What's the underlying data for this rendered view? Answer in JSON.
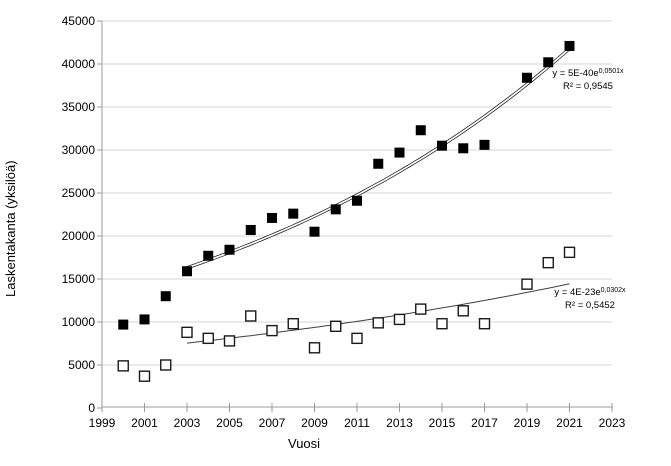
{
  "chart_data": {
    "type": "scatter",
    "title": "",
    "xlabel": "Vuosi",
    "ylabel": "Laskentakanta (yksilöä)",
    "xlim": [
      1999,
      2023
    ],
    "ylim": [
      0,
      45000
    ],
    "grid": "horizontal",
    "legend": "none",
    "x_tick_labels": [
      "1999",
      "2001",
      "2003",
      "2005",
      "2007",
      "2009",
      "2011",
      "2013",
      "2015",
      "2017",
      "2019",
      "2021",
      "2023"
    ],
    "x_ticks": [
      1999,
      2001,
      2003,
      2005,
      2007,
      2009,
      2011,
      2013,
      2015,
      2017,
      2019,
      2021,
      2023
    ],
    "y_tick_labels": [
      "0",
      "5000",
      "10000",
      "15000",
      "20000",
      "25000",
      "30000",
      "35000",
      "40000",
      "45000"
    ],
    "y_ticks": [
      0,
      5000,
      10000,
      15000,
      20000,
      25000,
      30000,
      35000,
      40000,
      45000
    ],
    "x": [
      2000,
      2001,
      2002,
      2003,
      2004,
      2005,
      2006,
      2007,
      2008,
      2009,
      2010,
      2011,
      2012,
      2013,
      2014,
      2015,
      2016,
      2017,
      2019,
      2020,
      2021
    ],
    "series": [
      {
        "name": "upper-series",
        "marker": "filled-square",
        "color": "#000000",
        "values": [
          9700,
          10300,
          13000,
          15900,
          17700,
          18400,
          20700,
          22100,
          22600,
          20500,
          23100,
          24100,
          28400,
          29700,
          32300,
          30500,
          30200,
          30600,
          38400,
          40200,
          42100
        ]
      },
      {
        "name": "lower-series",
        "marker": "open-square",
        "color": "#ffffff",
        "values": [
          4900,
          3700,
          5000,
          8800,
          8100,
          7800,
          10700,
          9000,
          9800,
          7000,
          9500,
          8100,
          9900,
          10300,
          11500,
          9800,
          11300,
          9800,
          14400,
          16900,
          18100
        ]
      }
    ],
    "trendlines": [
      {
        "series": "upper-series",
        "equation_base": "y = 5E-40e",
        "equation_exponent": "0,0501x",
        "r2_label": "R² = 0,9545",
        "span_years": [
          2003,
          2021
        ],
        "style": "double-line"
      },
      {
        "series": "lower-series",
        "equation_base": "y = 4E-23e",
        "equation_exponent": "0,0302x",
        "r2_label": "R² = 0,5452",
        "span_years": [
          2003,
          2021
        ],
        "style": "thin-line"
      }
    ],
    "colors": {
      "gridline": "#d6d6d6",
      "axis": "#9b9b9b",
      "marker_filled": "#000000",
      "marker_open_stroke": "#1a1a1a",
      "trendline_upper": "#1a1a1a",
      "trendline_lower": "#404040",
      "text": "#000000"
    }
  }
}
